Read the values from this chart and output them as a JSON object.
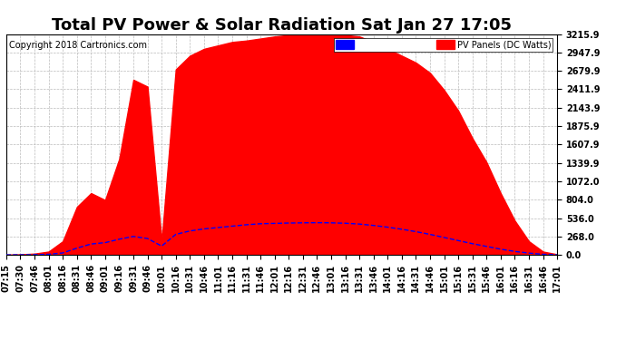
{
  "title": "Total PV Power & Solar Radiation Sat Jan 27 17:05",
  "copyright": "Copyright 2018 Cartronics.com",
  "legend_pv": "PV Panels (DC Watts)",
  "yticks": [
    0.0,
    268.0,
    536.0,
    804.0,
    1072.0,
    1339.9,
    1607.9,
    1875.9,
    2143.9,
    2411.9,
    2679.9,
    2947.9,
    3215.9
  ],
  "ymax": 3215.9,
  "ymin": 0.0,
  "background_color": "#ffffff",
  "plot_bg_color": "#ffffff",
  "grid_color": "#bbbbbb",
  "pv_color": "#ff0000",
  "radiation_color": "#0000ff",
  "xtick_labels": [
    "07:15",
    "07:30",
    "07:46",
    "08:01",
    "08:16",
    "08:31",
    "08:46",
    "09:01",
    "09:16",
    "09:31",
    "09:46",
    "10:01",
    "10:16",
    "10:31",
    "10:46",
    "11:01",
    "11:16",
    "11:31",
    "11:46",
    "12:01",
    "12:16",
    "12:31",
    "12:46",
    "13:01",
    "13:16",
    "13:31",
    "13:46",
    "14:01",
    "14:16",
    "14:31",
    "14:46",
    "15:01",
    "15:16",
    "15:31",
    "15:46",
    "16:01",
    "16:16",
    "16:31",
    "16:46",
    "17:01"
  ],
  "pv_values": [
    5,
    10,
    20,
    50,
    200,
    700,
    900,
    800,
    1400,
    2550,
    2450,
    200,
    2700,
    2900,
    3000,
    3050,
    3100,
    3120,
    3150,
    3180,
    3200,
    3210,
    3215,
    3210,
    3200,
    3180,
    3100,
    3000,
    2900,
    2800,
    2650,
    2400,
    2100,
    1700,
    1350,
    900,
    500,
    200,
    50,
    10
  ],
  "rad_values": [
    2,
    3,
    5,
    10,
    30,
    100,
    160,
    180,
    230,
    270,
    240,
    130,
    300,
    350,
    380,
    400,
    420,
    440,
    455,
    460,
    465,
    468,
    470,
    468,
    462,
    450,
    430,
    405,
    375,
    340,
    300,
    255,
    210,
    165,
    125,
    85,
    52,
    28,
    10,
    3
  ],
  "title_fontsize": 13,
  "tick_fontsize": 7,
  "copyright_fontsize": 7,
  "legend_fontsize": 7
}
